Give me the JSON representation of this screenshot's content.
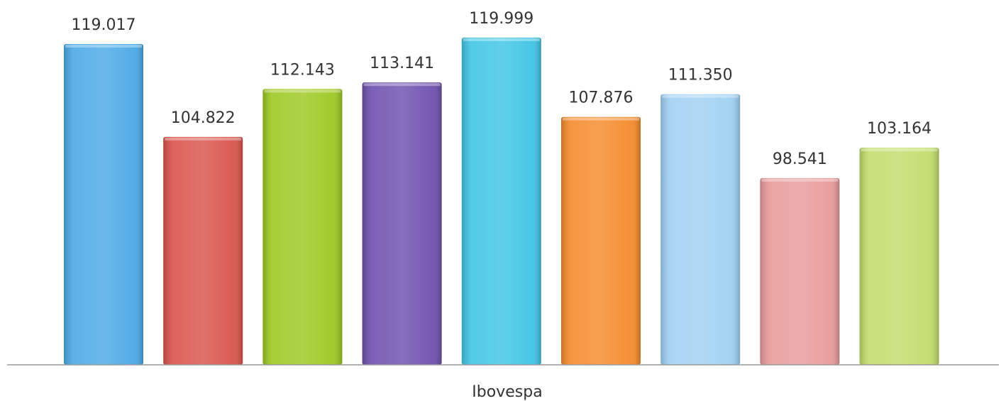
{
  "chart_data": {
    "type": "bar",
    "title": "",
    "xlabel": "",
    "ylabel": "",
    "categories": [
      "Ibovespa"
    ],
    "ylim": [
      70,
      122
    ],
    "grid": false,
    "legend": "none",
    "series": [
      {
        "values": [
          119.017
        ],
        "color": "#4aa9e6",
        "label": "119.017"
      },
      {
        "values": [
          104.822
        ],
        "color": "#d9534a",
        "label": "104.822"
      },
      {
        "values": [
          112.143
        ],
        "color": "#9cc920",
        "label": "112.143"
      },
      {
        "values": [
          113.141
        ],
        "color": "#6e4fae",
        "label": "113.141"
      },
      {
        "values": [
          119.999
        ],
        "color": "#3ec5e6",
        "label": "119.999"
      },
      {
        "values": [
          107.876
        ],
        "color": "#f58a2a",
        "label": "107.876"
      },
      {
        "values": [
          111.35
        ],
        "color": "#9fd0f2",
        "label": "111.350"
      },
      {
        "values": [
          98.541
        ],
        "color": "#e89a9a",
        "label": "98.541"
      },
      {
        "values": [
          103.164
        ],
        "color": "#c2dc6a",
        "label": "103.164"
      }
    ]
  }
}
